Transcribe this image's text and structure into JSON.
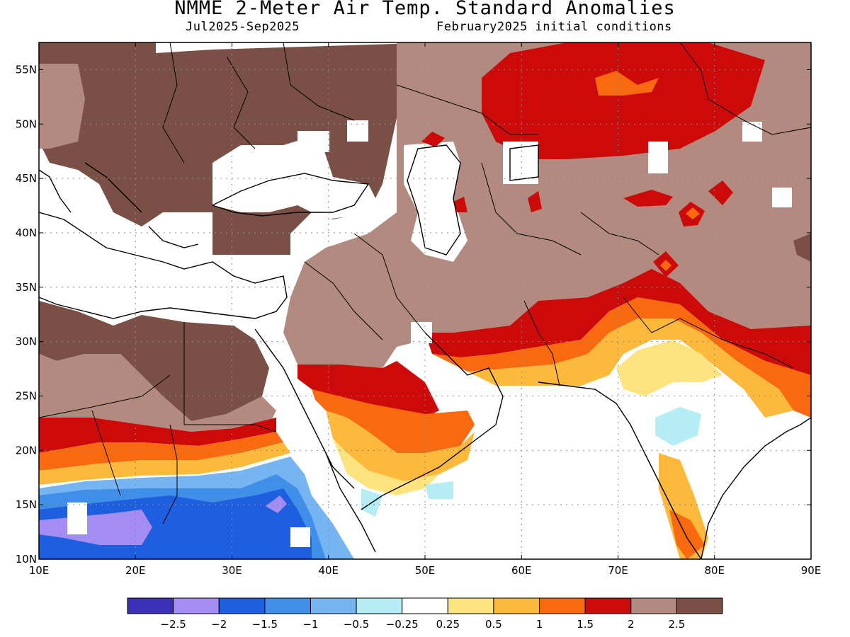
{
  "title": "NMME 2-Meter Air Temp. Standard Anomalies",
  "period": "Jul2025-Sep2025",
  "init": "February2025 initial conditions",
  "lat_labels": [
    "10N",
    "15N",
    "20N",
    "25N",
    "30N",
    "35N",
    "40N",
    "45N",
    "50N",
    "55N"
  ],
  "lon_labels": [
    "10E",
    "20E",
    "30E",
    "40E",
    "50E",
    "60E",
    "70E",
    "80E",
    "90E"
  ],
  "legend": {
    "colors": [
      "#3b2fb8",
      "#a38cf2",
      "#1e5fe0",
      "#3f8ee8",
      "#76b4f2",
      "#b5ecf5",
      "#ffffff",
      "#fde47f",
      "#fcb93c",
      "#f96a10",
      "#cc0a0a",
      "#b38a7f",
      "#7a4f45"
    ],
    "labels": [
      "-2.5",
      "-2",
      "-1.5",
      "-1",
      "-0.5",
      "-0.25",
      "0.25",
      "0.5",
      "1",
      "1.5",
      "2",
      "2.5"
    ]
  }
}
